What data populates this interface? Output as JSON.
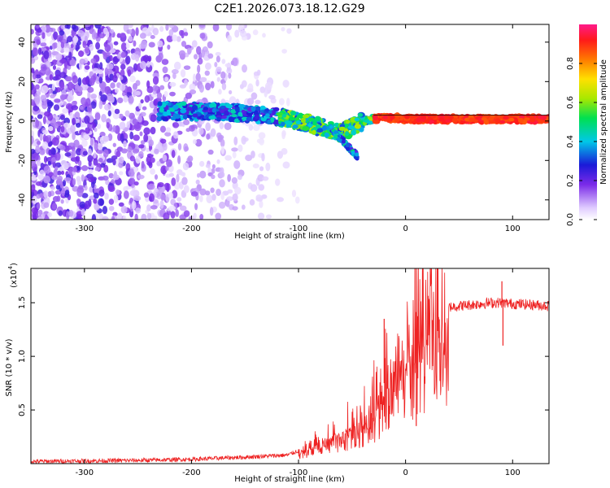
{
  "title": "C2E1.2026.073.18.12.G29",
  "chart_data": [
    {
      "type": "heatmap",
      "name": "spectrogram",
      "xlabel": "Height of straight line (km)",
      "ylabel": "Frequency (Hz)",
      "xlim": [
        -350,
        134
      ],
      "ylim": [
        -50,
        49
      ],
      "xticks": [
        -300,
        -200,
        -100,
        0,
        100
      ],
      "yticks": [
        -40,
        -20,
        0,
        20,
        40
      ],
      "xtick_labels": [
        "-300",
        "-200",
        "-100",
        "0",
        "100"
      ],
      "ytick_labels": [
        "-40",
        "-20",
        "0",
        "20",
        "40"
      ],
      "colorbar": {
        "label": "Normalized spectral amplitude",
        "range": [
          0,
          1
        ],
        "ticks": [
          0,
          0.2,
          0.4,
          0.6,
          0.8
        ],
        "tick_labels": [
          "0.0",
          "0.2",
          "0.4",
          "0.6",
          "0.8"
        ],
        "colormap": "white-lavender-purple-blue-cyan-green-yellow-orange-red-magenta"
      },
      "ridge": {
        "description": "dominant frequency trace vs height",
        "x": [
          -200,
          -150,
          -120,
          -100,
          -80,
          -60,
          -40,
          -20,
          0,
          50,
          100,
          134
        ],
        "y": [
          5,
          4,
          2,
          0,
          -3,
          -6,
          0,
          2,
          1,
          1,
          1,
          1
        ]
      }
    },
    {
      "type": "line",
      "name": "snr",
      "xlabel": "Height of straight line (km)",
      "ylabel": "SNR (10 * v/v)",
      "y_multiplier_label": "(x10",
      "y_multiplier_exponent": "4",
      "y_multiplier_close": ")",
      "xlim": [
        -350,
        134
      ],
      "ylim": [
        0,
        1.82
      ],
      "xticks": [
        -300,
        -200,
        -100,
        0,
        100
      ],
      "yticks": [
        0.5,
        1.0,
        1.5
      ],
      "xtick_labels": [
        "-300",
        "-200",
        "-100",
        "0",
        "100"
      ],
      "ytick_labels": [
        "0.5",
        "1.0",
        "1.5"
      ],
      "color": "#ee2222",
      "envelope": {
        "x": [
          -350,
          -250,
          -200,
          -150,
          -110,
          -100,
          -80,
          -60,
          -40,
          -30,
          -20,
          -10,
          0,
          10,
          20,
          30,
          40,
          60,
          80,
          90,
          100,
          120,
          134
        ],
        "y": [
          0.02,
          0.03,
          0.04,
          0.06,
          0.08,
          0.12,
          0.2,
          0.3,
          0.4,
          0.55,
          0.75,
          0.95,
          1.1,
          1.25,
          1.35,
          1.42,
          1.46,
          1.48,
          1.5,
          1.5,
          1.49,
          1.48,
          1.47
        ]
      },
      "spikes": [
        {
          "x": 9,
          "y": 1.82
        },
        {
          "x": 10,
          "y": 0.35
        },
        {
          "x": -20,
          "y": 1.35
        },
        {
          "x": 90,
          "y": 1.7
        },
        {
          "x": 91,
          "y": 1.1
        }
      ]
    }
  ]
}
